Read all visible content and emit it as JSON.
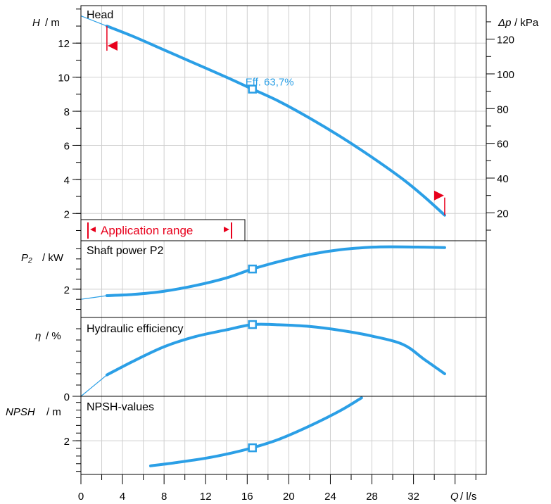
{
  "colors": {
    "curve": "#2b9fe6",
    "range": "#e8001c",
    "grid": "#cfcfcf",
    "axis": "#000000"
  },
  "x_axis": {
    "symbol": "Q",
    "unit": "/ l/s",
    "ticks": [
      "0",
      "4",
      "8",
      "12",
      "16",
      "20",
      "24",
      "28",
      "32"
    ]
  },
  "chart_data": [
    {
      "type": "line",
      "title": "Head",
      "ylabel_symbol": "H",
      "ylabel_unit": "/ m",
      "xlim": [
        0,
        39
      ],
      "ylim": [
        0.4,
        14.2
      ],
      "yticks": [
        "2",
        "4",
        "6",
        "8",
        "10",
        "12"
      ],
      "secondary_axis": {
        "symbol": "Δp",
        "unit": "/ kPa",
        "ticks": [
          "20",
          "40",
          "60",
          "80",
          "100",
          "120"
        ]
      },
      "series": [
        {
          "x": [
            2.5,
            5,
            8,
            11,
            14,
            16.5,
            19,
            22,
            25,
            28,
            31,
            33,
            35
          ],
          "y": [
            13.0,
            12.4,
            11.6,
            10.8,
            10.0,
            9.3,
            8.6,
            7.6,
            6.5,
            5.3,
            4.0,
            3.0,
            1.9
          ]
        }
      ],
      "extension": {
        "x": [
          0,
          2.5
        ],
        "y": [
          13.6,
          13.0
        ]
      },
      "operating_point": {
        "x": 16.5,
        "y": 9.3,
        "label": "Eff.   63,7%"
      },
      "application_range": {
        "label": "Application range",
        "from": 2.5,
        "to": 35
      }
    },
    {
      "type": "line",
      "title": "Shaft power P2",
      "ylabel_symbol": "P₂",
      "ylabel_unit": "/ kW",
      "xlim": [
        0,
        39
      ],
      "ylim": [
        1.3,
        3.2
      ],
      "yticks": [
        "2"
      ],
      "series": [
        {
          "x": [
            2.5,
            5,
            8,
            11,
            14,
            16.5,
            19,
            22,
            25,
            28,
            30,
            33,
            35
          ],
          "y": [
            1.84,
            1.87,
            1.95,
            2.09,
            2.28,
            2.5,
            2.68,
            2.86,
            2.98,
            3.04,
            3.05,
            3.04,
            3.03
          ]
        }
      ],
      "extension": {
        "x": [
          0,
          2.5
        ],
        "y": [
          1.75,
          1.84
        ]
      },
      "operating_point": {
        "x": 16.5,
        "y": 2.5
      }
    },
    {
      "type": "line",
      "title": "Hydraulic efficiency",
      "ylabel_symbol": "η",
      "ylabel_unit": "/ %",
      "xlim": [
        0,
        39
      ],
      "ylim": [
        0,
        70
      ],
      "yticks": [
        "0"
      ],
      "series": [
        {
          "x": [
            2.5,
            5,
            8,
            11,
            14,
            16.5,
            19,
            22,
            25,
            28,
            31,
            33,
            35
          ],
          "y": [
            19,
            31,
            44,
            53,
            59,
            63.7,
            63.5,
            62,
            58.5,
            53.5,
            46,
            33,
            20
          ]
        }
      ],
      "extension": {
        "x": [
          0,
          2.5
        ],
        "y": [
          0,
          19
        ]
      },
      "operating_point": {
        "x": 16.5,
        "y": 63.7
      }
    },
    {
      "type": "line",
      "title": "NPSH-values",
      "ylabel_symbol": "NPSH",
      "ylabel_unit": "/ m",
      "xlim": [
        0,
        39
      ],
      "ylim": [
        0.9,
        3.45
      ],
      "yticks": [
        "2"
      ],
      "series": [
        {
          "x": [
            6.7,
            9,
            12,
            14.5,
            16.5,
            19,
            22,
            25,
            27
          ],
          "y": [
            1.18,
            1.28,
            1.43,
            1.6,
            1.77,
            2.04,
            2.48,
            2.99,
            3.4
          ]
        }
      ],
      "operating_point": {
        "x": 16.5,
        "y": 1.77
      }
    }
  ]
}
